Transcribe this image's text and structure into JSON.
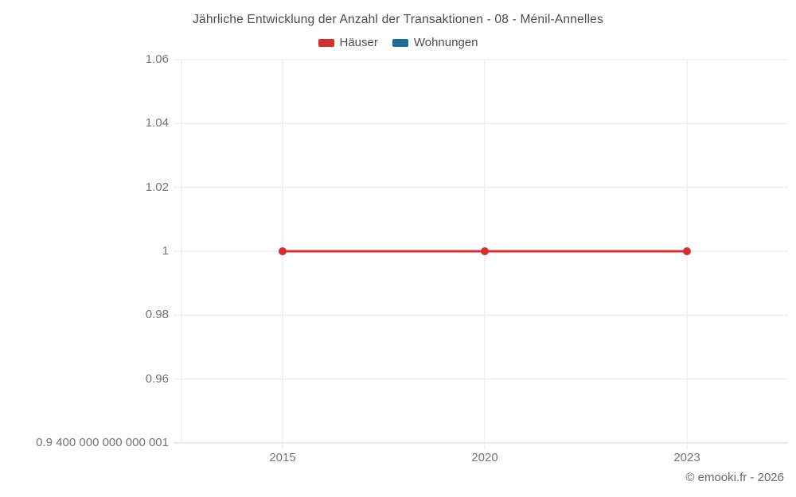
{
  "title": "Jährliche Entwicklung der Anzahl der Transaktionen - 08 - Ménil-Annelles",
  "footer": "© emooki.fr - 2026",
  "colors": {
    "haeuser": "#d32f2f",
    "wohnungen": "#1b6d9d",
    "gridline": "#e7e7e7",
    "axis_line": "#d6d6d6",
    "title_text": "#4c4c4c",
    "tick_text": "#757575",
    "footer_text": "#696969"
  },
  "chart_data": {
    "type": "line",
    "title": "Jährliche Entwicklung der Anzahl der Transaktionen - 08 - Ménil-Annelles",
    "xlabel": "",
    "ylabel": "",
    "categories": [
      "2015",
      "2020",
      "2023"
    ],
    "series": [
      {
        "name": "Häuser",
        "color": "#d32f2f",
        "values": [
          1,
          1,
          1
        ]
      },
      {
        "name": "Wohnungen",
        "color": "#1b6d9d",
        "values": []
      }
    ],
    "ylim": [
      0.94,
      1.06
    ],
    "y_ticks": [
      {
        "value": 1.06,
        "label": "1.06"
      },
      {
        "value": 1.04,
        "label": "1.04"
      },
      {
        "value": 1.02,
        "label": "1.02"
      },
      {
        "value": 1.0,
        "label": "1"
      },
      {
        "value": 0.98,
        "label": "0.98"
      },
      {
        "value": 0.96,
        "label": "0.96"
      },
      {
        "value": 0.94,
        "label": "0.9 400 000 000 000 001"
      }
    ],
    "grid": true,
    "legend_position": "top"
  }
}
